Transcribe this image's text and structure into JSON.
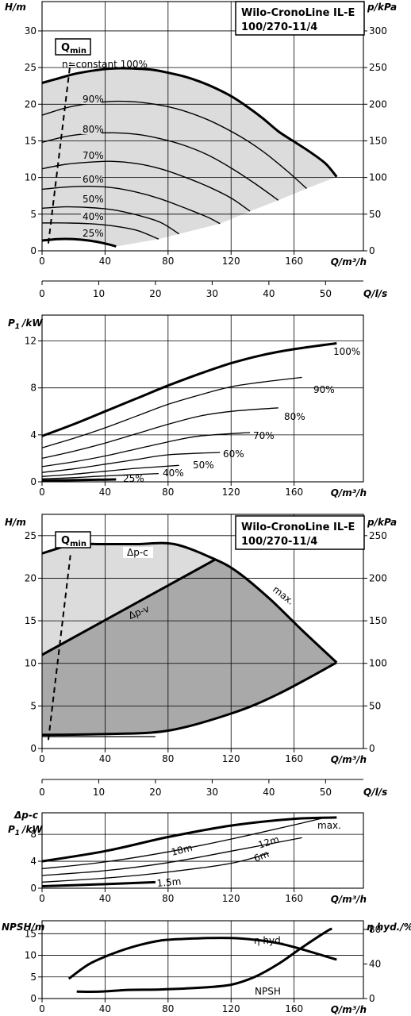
{
  "product": {
    "line1": "Wilo-CronoLine IL-E",
    "line2": "100/270-11/4"
  },
  "qmin": {
    "prefix": "Q",
    "sub": "min"
  },
  "chart_data": [
    {
      "id": "head_speed",
      "type": "line",
      "x_label": "Q/m³/h",
      "y_label": "H/m",
      "y2_label": "p/kPa",
      "x_ticks": [
        0,
        40,
        80,
        120,
        160
      ],
      "y_ticks": [
        0,
        5,
        10,
        15,
        20,
        25,
        30
      ],
      "y2_ticks": [
        0,
        50,
        100,
        150,
        200,
        250,
        300
      ],
      "xlim": [
        0,
        204
      ],
      "ylim": [
        0,
        34
      ],
      "grid": true,
      "series": [
        {
          "name": "n=constant 100%",
          "x": [
            0,
            10,
            20,
            30,
            40,
            50,
            60,
            70,
            80,
            90,
            100,
            110,
            120,
            130,
            140,
            150,
            160,
            170,
            180,
            187
          ],
          "y": [
            22.9,
            23.5,
            24.1,
            24.5,
            24.8,
            24.9,
            24.85,
            24.7,
            24.3,
            23.8,
            23.1,
            22.2,
            21.1,
            19.7,
            18.1,
            16.3,
            14.9,
            13.5,
            11.9,
            10.1
          ]
        },
        {
          "name": "90%",
          "x": [
            0,
            15,
            30,
            47,
            65,
            85,
            105,
            125,
            140,
            155,
            168
          ],
          "y": [
            18.5,
            19.5,
            20.1,
            20.4,
            20.2,
            19.4,
            17.9,
            15.7,
            13.6,
            11.0,
            8.5
          ]
        },
        {
          "name": "80%",
          "x": [
            0,
            15,
            30,
            45,
            60,
            75,
            90,
            105,
            120,
            135,
            150
          ],
          "y": [
            14.8,
            15.6,
            16.0,
            16.1,
            15.9,
            15.3,
            14.4,
            13.1,
            11.3,
            9.2,
            6.9
          ]
        },
        {
          "name": "70%",
          "x": [
            0,
            15,
            30,
            45,
            60,
            75,
            90,
            105,
            120,
            132
          ],
          "y": [
            11.2,
            11.8,
            12.1,
            12.2,
            11.9,
            11.2,
            10.1,
            8.8,
            7.2,
            5.4
          ]
        },
        {
          "name": "60%",
          "x": [
            0,
            15,
            30,
            45,
            60,
            75,
            90,
            105,
            113
          ],
          "y": [
            8.4,
            8.7,
            8.8,
            8.6,
            8.0,
            7.1,
            5.9,
            4.6,
            3.7
          ]
        },
        {
          "name": "50%",
          "x": [
            0,
            15,
            30,
            45,
            60,
            75,
            87
          ],
          "y": [
            5.8,
            6.0,
            5.9,
            5.6,
            4.9,
            3.9,
            2.3
          ]
        },
        {
          "name": "40%",
          "x": [
            0,
            15,
            30,
            45,
            60,
            74
          ],
          "y": [
            3.8,
            3.8,
            3.7,
            3.4,
            2.8,
            1.6
          ]
        },
        {
          "name": "25%",
          "x": [
            0,
            10,
            20,
            30,
            40,
            47
          ],
          "y": [
            1.4,
            1.6,
            1.6,
            1.4,
            1.0,
            0.6
          ]
        }
      ],
      "region_lower_edge": {
        "x": [
          47,
          74,
          87,
          113,
          132,
          150,
          168,
          187
        ],
        "y": [
          0.6,
          1.6,
          2.3,
          3.7,
          5.4,
          6.9,
          8.5,
          10.1
        ]
      },
      "qmin_line": {
        "x": [
          4,
          18
        ],
        "y": [
          1,
          27
        ]
      }
    },
    {
      "id": "flow_ls_axis",
      "type": "axis",
      "x_label": "Q/l/s",
      "x_ticks": [
        0,
        10,
        20,
        30,
        40,
        50
      ]
    },
    {
      "id": "power_speed",
      "type": "line",
      "x_label": "Q/m³/h",
      "y_label": "P1/kW",
      "x_ticks": [
        0,
        40,
        80,
        120,
        160
      ],
      "y_ticks": [
        0,
        4,
        8,
        12
      ],
      "xlim": [
        0,
        204
      ],
      "ylim": [
        0,
        14.2
      ],
      "grid": true,
      "series": [
        {
          "name": "100%",
          "x": [
            0,
            20,
            40,
            60,
            80,
            100,
            120,
            140,
            160,
            187
          ],
          "y": [
            3.9,
            4.9,
            6.0,
            7.1,
            8.2,
            9.2,
            10.1,
            10.8,
            11.3,
            11.8
          ]
        },
        {
          "name": "90%",
          "x": [
            0,
            20,
            40,
            60,
            80,
            100,
            120,
            140,
            165
          ],
          "y": [
            2.9,
            3.7,
            4.6,
            5.6,
            6.6,
            7.4,
            8.1,
            8.5,
            8.9
          ]
        },
        {
          "name": "80%",
          "x": [
            0,
            20,
            40,
            60,
            80,
            100,
            120,
            150
          ],
          "y": [
            2.0,
            2.6,
            3.3,
            4.1,
            4.9,
            5.6,
            6.0,
            6.3
          ]
        },
        {
          "name": "70%",
          "x": [
            0,
            20,
            40,
            60,
            80,
            100,
            132
          ],
          "y": [
            1.3,
            1.7,
            2.2,
            2.8,
            3.4,
            3.9,
            4.2
          ]
        },
        {
          "name": "60%",
          "x": [
            0,
            20,
            40,
            60,
            80,
            113
          ],
          "y": [
            0.8,
            1.1,
            1.5,
            1.9,
            2.3,
            2.5
          ]
        },
        {
          "name": "50%",
          "x": [
            0,
            20,
            40,
            60,
            87
          ],
          "y": [
            0.45,
            0.65,
            0.9,
            1.15,
            1.4
          ]
        },
        {
          "name": "40%",
          "x": [
            0,
            20,
            40,
            74
          ],
          "y": [
            0.25,
            0.35,
            0.5,
            0.7
          ]
        },
        {
          "name": "25%",
          "x": [
            0,
            47
          ],
          "y": [
            0.1,
            0.2
          ]
        }
      ]
    },
    {
      "id": "head_control",
      "type": "area",
      "x_label": "Q/m³/h",
      "y_label": "H/m",
      "y2_label": "p/kPa",
      "x_ticks": [
        0,
        40,
        80,
        120,
        160
      ],
      "y_ticks": [
        0,
        5,
        10,
        15,
        20,
        25
      ],
      "y2_ticks": [
        0,
        50,
        100,
        150,
        200,
        250
      ],
      "xlim": [
        0,
        204
      ],
      "ylim": [
        0,
        27.5
      ],
      "grid": true,
      "labels": {
        "dpc": "Δp-c",
        "dpv": "Δp-v",
        "max": "max."
      },
      "max_curve": {
        "x": [
          0,
          10,
          20,
          40,
          60,
          84,
          110,
          125,
          145,
          165,
          187
        ],
        "y": [
          22.9,
          23.5,
          24.0,
          24.0,
          24.0,
          24.0,
          22.2,
          20.6,
          17.5,
          13.9,
          10.1
        ]
      },
      "dpc_line": {
        "x": [
          20,
          84
        ],
        "y": [
          24.0,
          24.0
        ]
      },
      "dpv_line": {
        "x": [
          0,
          110
        ],
        "y": [
          11.0,
          22.2
        ]
      },
      "min_curve": {
        "x": [
          0,
          40,
          80,
          120,
          150,
          187
        ],
        "y": [
          1.6,
          1.7,
          2.1,
          4.1,
          6.4,
          10.1
        ]
      },
      "min_thin": {
        "x": [
          0,
          72
        ],
        "y": [
          1.4,
          1.4
        ]
      },
      "qmin_line": {
        "x": [
          4,
          18
        ],
        "y": [
          1,
          24
        ]
      }
    },
    {
      "id": "flow_ls_axis_2",
      "type": "axis",
      "x_label": "Q/l/s",
      "x_ticks": [
        0,
        10,
        20,
        30,
        40,
        50
      ]
    },
    {
      "id": "power_control",
      "type": "line",
      "x_label": "Q/m³/h",
      "y_label_top": "Δp-c",
      "y_label": "P1/kW",
      "x_ticks": [
        0,
        40,
        80,
        120,
        160
      ],
      "y_ticks": [
        0,
        4,
        8
      ],
      "xlim": [
        0,
        204
      ],
      "ylim": [
        0,
        11.2
      ],
      "grid": true,
      "series": [
        {
          "name": "max.",
          "x": [
            0,
            40,
            80,
            120,
            160,
            187
          ],
          "y": [
            4.0,
            5.5,
            7.6,
            9.3,
            10.3,
            10.5
          ]
        },
        {
          "name": "18m",
          "x": [
            0,
            40,
            80,
            120,
            160,
            180
          ],
          "y": [
            2.9,
            3.9,
            5.4,
            7.3,
            9.4,
            10.5
          ]
        },
        {
          "name": "12m",
          "x": [
            0,
            40,
            80,
            120,
            165
          ],
          "y": [
            1.9,
            2.6,
            3.8,
            5.5,
            7.5
          ]
        },
        {
          "name": "6m",
          "x": [
            0,
            40,
            80,
            120,
            144
          ],
          "y": [
            0.9,
            1.5,
            2.4,
            3.7,
            5.2
          ]
        },
        {
          "name": "1.5m",
          "x": [
            0,
            40,
            72
          ],
          "y": [
            0.3,
            0.6,
            0.9
          ]
        }
      ]
    },
    {
      "id": "npsh_efficiency",
      "type": "line",
      "x_label": "Q/m³/h",
      "y_label": "NPSH/m",
      "y2_label": "η hyd./%",
      "x_ticks": [
        0,
        40,
        80,
        120,
        160
      ],
      "y_ticks": [
        0,
        5,
        10,
        15
      ],
      "y2_ticks": [
        0,
        40,
        80
      ],
      "xlim": [
        0,
        204
      ],
      "ylim": [
        0,
        18
      ],
      "grid": true,
      "series": [
        {
          "name": "η hyd.",
          "x": [
            17,
            30,
            45,
            60,
            75,
            90,
            105,
            120,
            135,
            150,
            165,
            187
          ],
          "y": [
            23,
            40,
            52,
            61,
            67,
            69,
            70,
            70,
            68,
            64,
            57,
            45
          ]
        },
        {
          "name": "NPSH",
          "x": [
            22,
            37,
            55,
            75,
            100,
            120,
            135,
            150,
            165,
            180,
            184
          ],
          "y": [
            1.6,
            1.6,
            2.0,
            2.1,
            2.5,
            3.2,
            5.0,
            8.0,
            11.8,
            15.4,
            16.2
          ]
        }
      ]
    }
  ]
}
